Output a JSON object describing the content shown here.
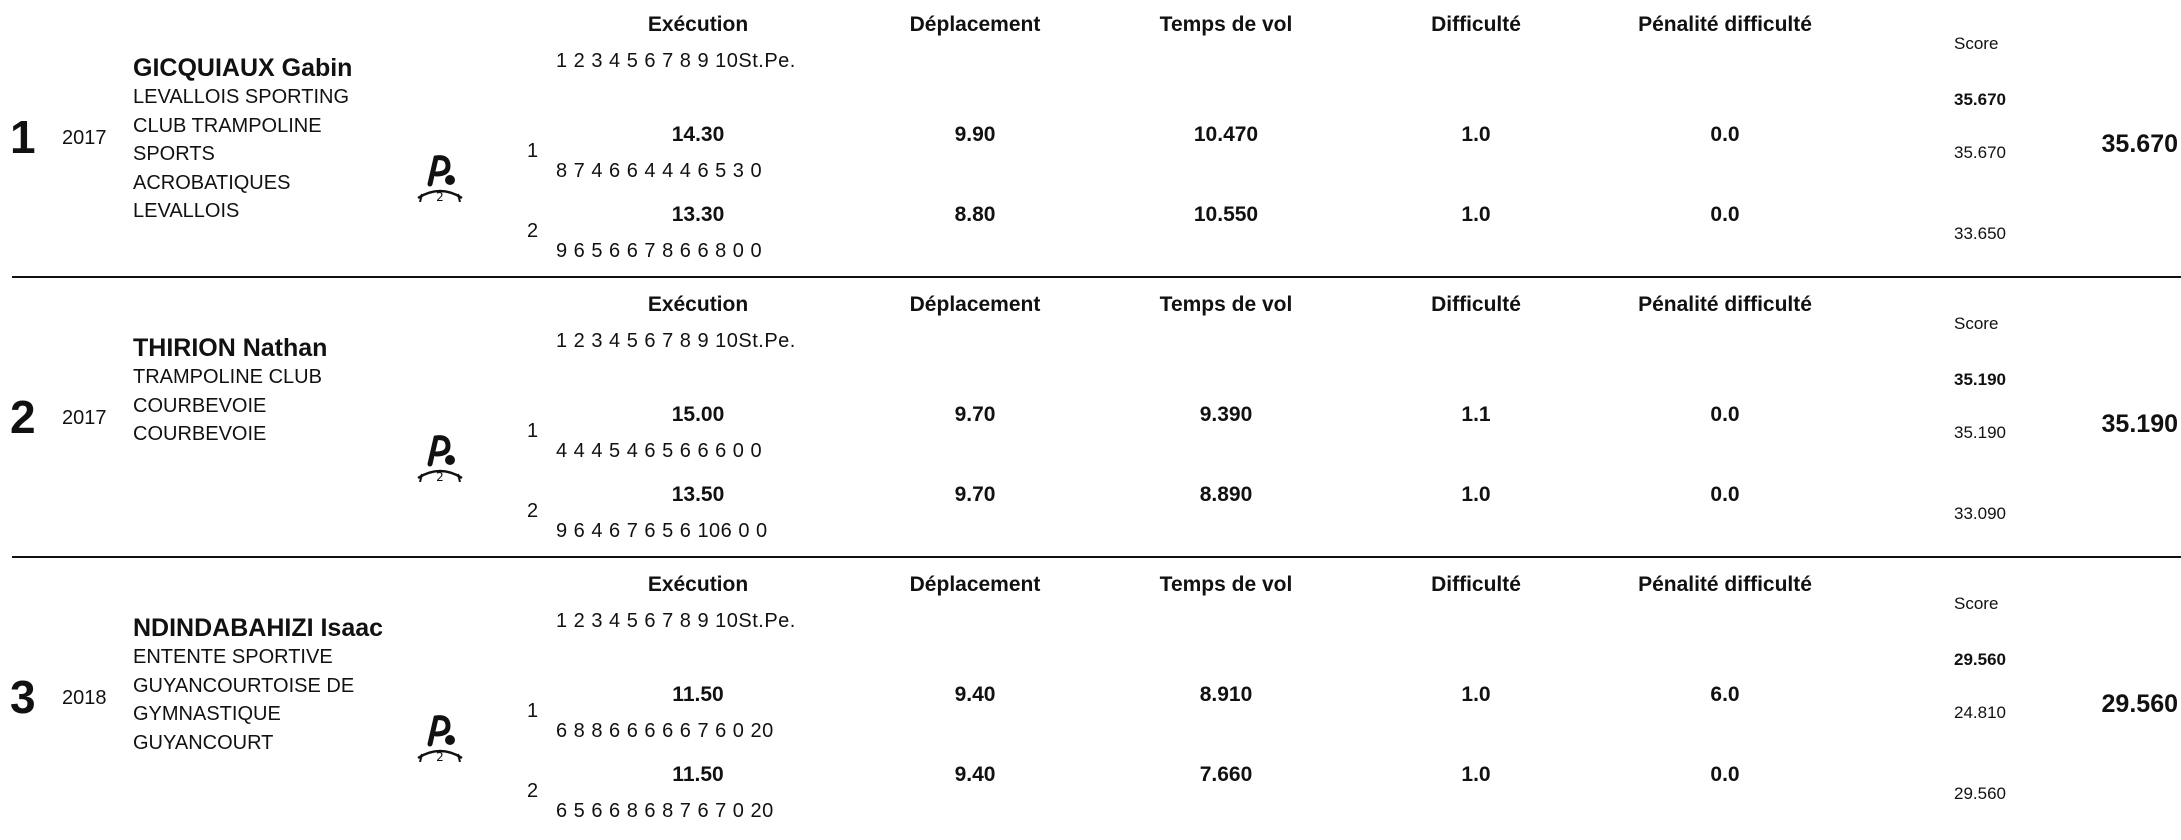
{
  "headers": {
    "execution": "Exécution",
    "deplacement": "Déplacement",
    "temps_vol": "Temps de vol",
    "difficulte": "Difficulté",
    "penalite": "Pénalité difficulté",
    "score": "Score",
    "judge_columns": "1 2 3 4 5 6 7 8 9 10St.Pe."
  },
  "athletes": [
    {
      "rank": "1",
      "year": "2017",
      "name": "GICQUIAUX Gabin",
      "club": "LEVALLOIS SPORTING CLUB TRAMPOLINE SPORTS ACROBATIQUES LEVALLOIS",
      "best_score": "35.670",
      "final": "35.670",
      "passes": [
        {
          "label": "1",
          "execution": "14.30",
          "deplacement": "9.90",
          "temps_vol": "10.470",
          "difficulte": "1.0",
          "penalite": "0.0",
          "digits": "8 7 4 6 6 4 4 4 6 5 3 0",
          "score": "35.670"
        },
        {
          "label": "2",
          "execution": "13.30",
          "deplacement": "8.80",
          "temps_vol": "10.550",
          "difficulte": "1.0",
          "penalite": "0.0",
          "digits": "9 6 5 6 6 7 8 6 6 8 0 0",
          "score": "33.650"
        }
      ]
    },
    {
      "rank": "2",
      "year": "2017",
      "name": "THIRION Nathan",
      "club": "TRAMPOLINE CLUB COURBEVOIE COURBEVOIE",
      "best_score": "35.190",
      "final": "35.190",
      "passes": [
        {
          "label": "1",
          "execution": "15.00",
          "deplacement": "9.70",
          "temps_vol": "9.390",
          "difficulte": "1.1",
          "penalite": "0.0",
          "digits": "4 4 4 5 4 6 5 6 6 6 0 0",
          "score": "35.190"
        },
        {
          "label": "2",
          "execution": "13.50",
          "deplacement": "9.70",
          "temps_vol": "8.890",
          "difficulte": "1.0",
          "penalite": "0.0",
          "digits": "9 6 4 6 7 6 5 6 106 0 0",
          "score": "33.090"
        }
      ]
    },
    {
      "rank": "3",
      "year": "2018",
      "name": "NDINDABAHIZI Isaac",
      "club": "ENTENTE SPORTIVE GUYANCOURTOISE DE GYMNASTIQUE GUYANCOURT",
      "best_score": "29.560",
      "final": "29.560",
      "passes": [
        {
          "label": "1",
          "execution": "11.50",
          "deplacement": "9.40",
          "temps_vol": "8.910",
          "difficulte": "1.0",
          "penalite": "6.0",
          "digits": "6 8 8 6 6 6 6 6 7 6 0 20",
          "score": "24.810"
        },
        {
          "label": "2",
          "execution": "11.50",
          "deplacement": "9.40",
          "temps_vol": "7.660",
          "difficulte": "1.0",
          "penalite": "0.0",
          "digits": "6 5 6 6 8 6 8 7 6 7 0 20",
          "score": "29.560"
        }
      ]
    }
  ]
}
